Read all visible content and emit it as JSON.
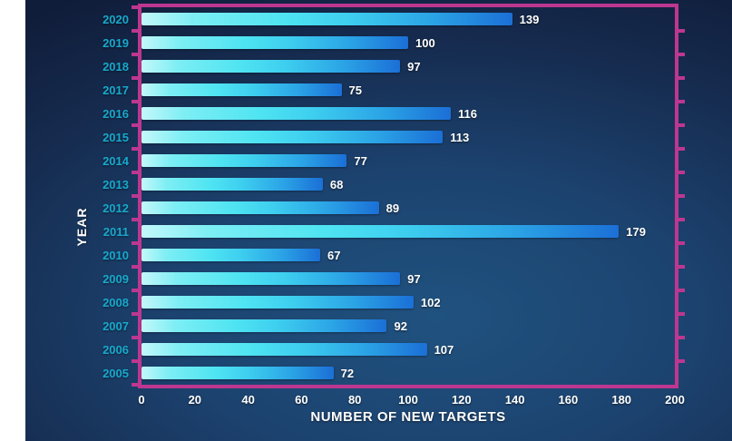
{
  "chart_data": {
    "type": "bar",
    "orientation": "horizontal",
    "title": "",
    "xlabel": "NUMBER OF NEW TARGETS",
    "ylabel": "YEAR",
    "categories": [
      "2020",
      "2019",
      "2018",
      "2017",
      "2016",
      "2015",
      "2014",
      "2013",
      "2012",
      "2011",
      "2010",
      "2009",
      "2008",
      "2007",
      "2006",
      "2005"
    ],
    "values": [
      139,
      100,
      97,
      75,
      116,
      113,
      77,
      68,
      89,
      179,
      67,
      97,
      102,
      92,
      107,
      72
    ],
    "xlim": [
      0,
      200
    ],
    "x_ticks": [
      0,
      20,
      40,
      60,
      80,
      100,
      120,
      140,
      160,
      180,
      200
    ],
    "grid": "off",
    "legend": "none"
  },
  "colors": {
    "page_background": "#ffffff",
    "chart_background_center": "#20527f",
    "chart_background_edge": "#101d3a",
    "frame": "#bd3790",
    "category_label": "#18a9cc",
    "value_label": "#ffffff",
    "axis_label": "#ffffff",
    "bar_gradient_start": "#c3f8fa",
    "bar_gradient_mid": "#4fe4f2",
    "bar_gradient_end": "#1b6fd6"
  }
}
